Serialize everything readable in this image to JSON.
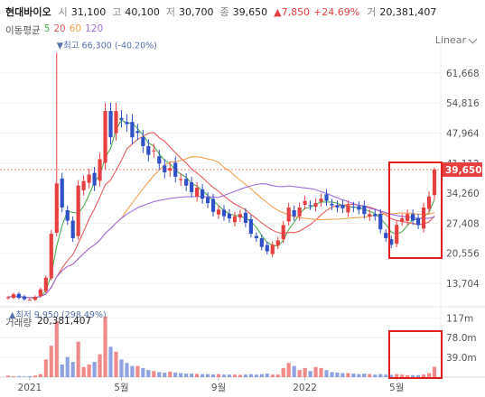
{
  "header": {
    "name": "현대바이오",
    "open_label": "시",
    "open": "31,100",
    "high_label": "고",
    "high": "40,100",
    "low_label": "저",
    "low": "30,700",
    "close_label": "종",
    "close": "39,650",
    "change": "▲7,850",
    "change_pct": "+24.69%",
    "volume_label": "거",
    "volume": "20,381,407"
  },
  "ma": {
    "label": "이동평균",
    "periods": [
      {
        "value": "5",
        "color": "#4caf50"
      },
      {
        "value": "20",
        "color": "#e65c5c"
      },
      {
        "value": "60",
        "color": "#f0a050"
      },
      {
        "value": "120",
        "color": "#a06ee0"
      }
    ]
  },
  "scale_button": "Linear",
  "annotations": {
    "high": "최고 66,300 (-40.20%)",
    "low": "최저 9,950 (298.49%)"
  },
  "volume_panel": {
    "label": "거래량",
    "value": "20,381,407"
  },
  "colors": {
    "up": "#e64040",
    "down": "#3050c8",
    "last_price_bg": "#e64040",
    "highlight_box": "#e02020"
  },
  "chart_data": [
    {
      "type": "candlestick",
      "title": "현대바이오",
      "x_ticks": [
        "2021",
        "5월",
        "9월",
        "2022",
        "5월"
      ],
      "y_ticks": [
        13704,
        20556,
        27408,
        34260,
        41112,
        47964,
        54816,
        61668
      ],
      "y_tick_labels": [
        "13,704",
        "20,556",
        "27,408",
        "34,260",
        "41,112",
        "47,964",
        "54,816",
        "61,668"
      ],
      "ylim": [
        10000,
        67000
      ],
      "last_price": 39650,
      "last_price_label": "39,650",
      "all_time_high": 66300,
      "all_time_low": 9950,
      "close_series": [
        10500,
        11200,
        10400,
        10100,
        9950,
        10600,
        12300,
        15000,
        25000,
        36500,
        31000,
        28000,
        24000,
        36000,
        37000,
        38500,
        36000,
        42000,
        53000,
        47000,
        53000,
        51000,
        50000,
        47000,
        48000,
        45000,
        43000,
        44000,
        41000,
        39000,
        40000,
        38000,
        37500,
        36000,
        34500,
        35500,
        33000,
        32000,
        30000,
        30500,
        29000,
        28500,
        29000,
        29500,
        27500,
        25000,
        24000,
        22000,
        21000,
        22500,
        23500,
        27000,
        31000,
        29000,
        31000,
        32500,
        31500,
        32000,
        33000,
        32500,
        31500,
        31000,
        30800,
        31500,
        31000,
        30500,
        29500,
        29500,
        29000,
        26000,
        24000,
        22500,
        27000,
        28500,
        29500,
        28000,
        27000,
        31000,
        33500,
        39650
      ],
      "moving_averages": [
        {
          "name": "MA5",
          "color": "#4caf50"
        },
        {
          "name": "MA20",
          "color": "#e65c5c"
        },
        {
          "name": "MA60",
          "color": "#f0a050"
        },
        {
          "name": "MA120",
          "color": "#a06ee0"
        }
      ]
    },
    {
      "type": "bar",
      "title": "거래량",
      "y_ticks": [
        39000000,
        78000000,
        117000000
      ],
      "y_tick_labels": [
        "39.0m",
        "78.0m",
        "117m"
      ],
      "ylim": [
        0,
        130000000
      ],
      "values": [
        3000000,
        2000000,
        2000000,
        1500000,
        2000000,
        3000000,
        6000000,
        35000000,
        62000000,
        110000000,
        25000000,
        40000000,
        30000000,
        70000000,
        20000000,
        25000000,
        30000000,
        45000000,
        120000000,
        60000000,
        50000000,
        35000000,
        28000000,
        22000000,
        22000000,
        18000000,
        14000000,
        12000000,
        10000000,
        9000000,
        11000000,
        9000000,
        8000000,
        7000000,
        7000000,
        6500000,
        6000000,
        6000000,
        5500000,
        6000000,
        5000000,
        5000000,
        5000000,
        4500000,
        5000000,
        6000000,
        5000000,
        6000000,
        7000000,
        5000000,
        5000000,
        18000000,
        28000000,
        22000000,
        14000000,
        18000000,
        12000000,
        20000000,
        18000000,
        14000000,
        10000000,
        9000000,
        8000000,
        8000000,
        7000000,
        6000000,
        7000000,
        6000000,
        5000000,
        6000000,
        5000000,
        4500000,
        6000000,
        5000000,
        4000000,
        4000000,
        4000000,
        5000000,
        8000000,
        20381407
      ]
    }
  ]
}
